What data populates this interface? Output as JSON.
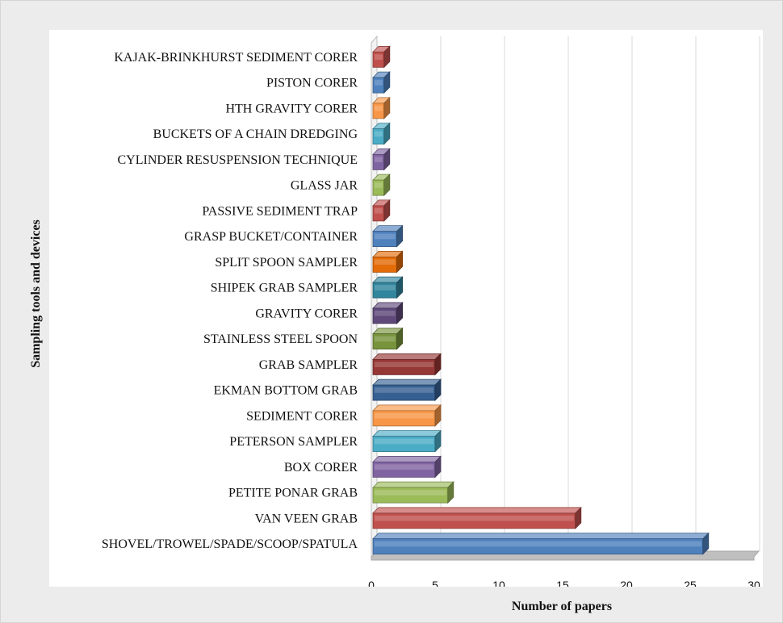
{
  "chart_data": {
    "type": "bar",
    "orientation": "horizontal",
    "style": "3d",
    "xlabel": "Number of papers",
    "ylabel": "Sampling tools and devices",
    "xlim": [
      0,
      30
    ],
    "x_ticks": [
      "0",
      "5",
      "10",
      "15",
      "20",
      "25",
      "30"
    ],
    "grid": "vertical",
    "categories": [
      "KAJAK-BRINKHURST SEDIMENT CORER",
      "PISTON CORER ",
      "HTH GRAVITY CORER",
      "BUCKETS OF A CHAIN DREDGING ",
      "CYLINDER RESUSPENSION TECHNIQUE",
      "GLASS JAR",
      "PASSIVE SEDIMENT TRAP",
      "GRASP BUCKET/CONTAINER",
      "SPLIT SPOON SAMPLER",
      "SHIPEK GRAB SAMPLER",
      "GRAVITY CORER",
      "STAINLESS STEEL SPOON",
      "GRAB SAMPLER",
      "EKMAN BOTTOM GRAB",
      "SEDIMENT CORER",
      "PETERSON SAMPLER",
      "BOX CORER",
      "PETITE PONAR GRAB",
      "VAN VEEN GRAB",
      "SHOVEL/TROWEL/SPADE/SCOOP/SPATULA"
    ],
    "values": [
      1,
      1,
      1,
      1,
      1,
      1,
      1,
      2,
      2,
      2,
      2,
      2,
      5,
      5,
      5,
      5,
      5,
      6,
      16,
      26
    ],
    "colors": [
      "#c0504d",
      "#4f81bd",
      "#f79646",
      "#4bacc6",
      "#8064a2",
      "#9bbb59",
      "#c0504d",
      "#4f81bd",
      "#e36c09",
      "#31859c",
      "#5f497a",
      "#77933c",
      "#953735",
      "#366092",
      "#f79646",
      "#4bacc6",
      "#8064a2",
      "#9bbb59",
      "#c0504d",
      "#4f81bd"
    ]
  }
}
